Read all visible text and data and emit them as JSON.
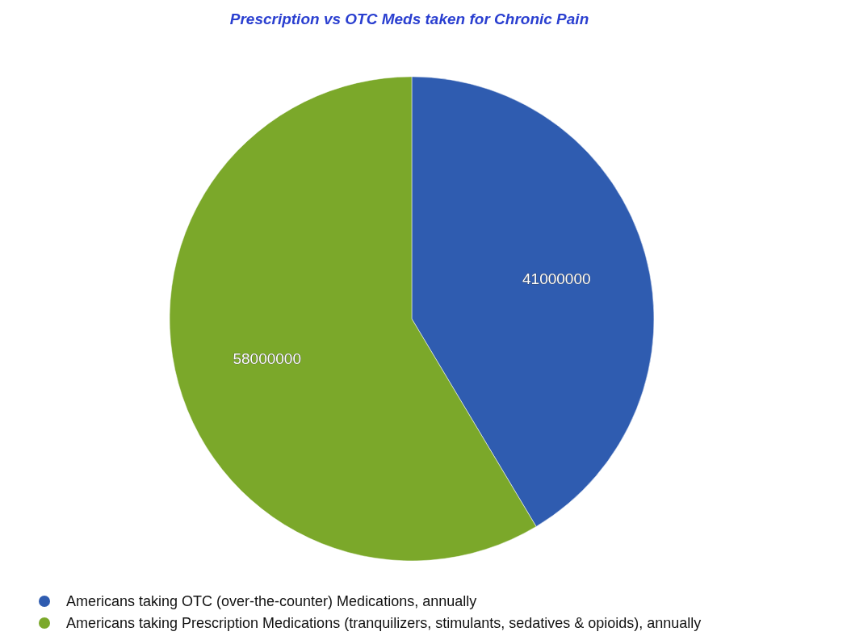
{
  "chart_data": {
    "type": "pie",
    "title": "Prescription vs OTC Meds taken for Chronic Pain",
    "categories": [
      "Americans taking OTC (over-the-counter) Medications, annually",
      "Americans taking Prescription Medications (tranquilizers, stimulants, sedatives & opioids), annually"
    ],
    "values": [
      41000000,
      58000000
    ],
    "colors": [
      "#2f5cb0",
      "#7ba82a"
    ],
    "data_labels": true,
    "legend": "bottom left"
  }
}
